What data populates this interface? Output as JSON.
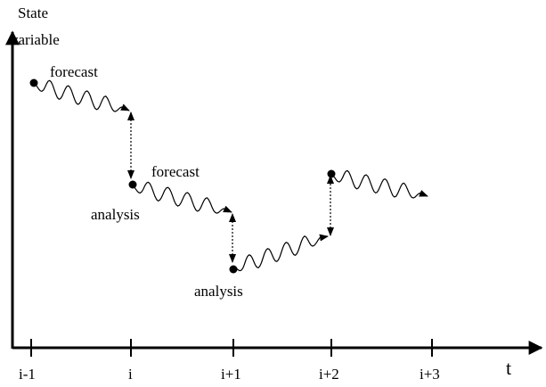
{
  "axes": {
    "y_label": [
      "State",
      "variable"
    ],
    "x_label": "t",
    "ticks": [
      "i-1",
      "i",
      "i+1",
      "i+2",
      "i+3"
    ]
  },
  "labels": {
    "forecast_1": "forecast",
    "forecast_2": "forecast",
    "analysis_1": "analysis",
    "analysis_2": "analysis"
  }
}
